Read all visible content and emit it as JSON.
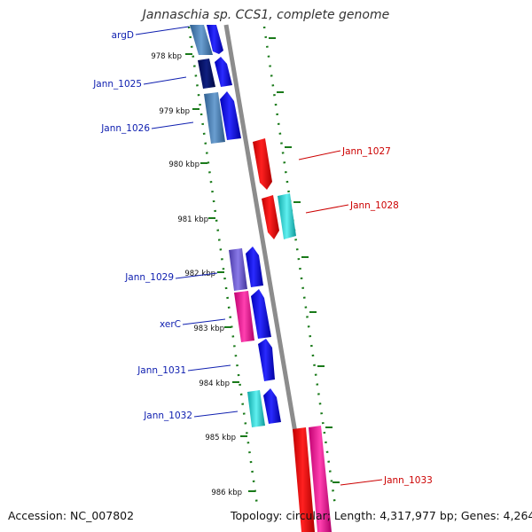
{
  "title": "Jannaschia sp. CCS1, complete genome",
  "footer": {
    "accession": "Accession: NC_007802",
    "summary": "Topology: circular; Length: 4,317,977 bp; Genes: 4,264"
  },
  "colors": {
    "backbone": "#8c8c8c",
    "tick": "#1a7a1a",
    "label_left": "#1020b0",
    "label_right": "#cc0000",
    "feature_red": "#ee0000",
    "feature_blue": "#0a0ae0",
    "feature_navy": "#001070",
    "feature_steel": "#4a80b8",
    "feature_cyan": "#20c8c8",
    "feature_purple": "#6a5acd",
    "feature_magenta": "#ee1090"
  },
  "scale_labels": [
    "978 kbp",
    "979 kbp",
    "980 kbp",
    "981 kbp",
    "982 kbp",
    "983 kbp",
    "984 kbp",
    "985 kbp",
    "986 kbp"
  ],
  "gene_labels_left": [
    "argD",
    "Jann_1025",
    "Jann_1026",
    "Jann_1029",
    "xerC",
    "Jann_1031",
    "Jann_1032"
  ],
  "gene_labels_right": [
    "Jann_1027",
    "Jann_1028",
    "Jann_1033"
  ]
}
